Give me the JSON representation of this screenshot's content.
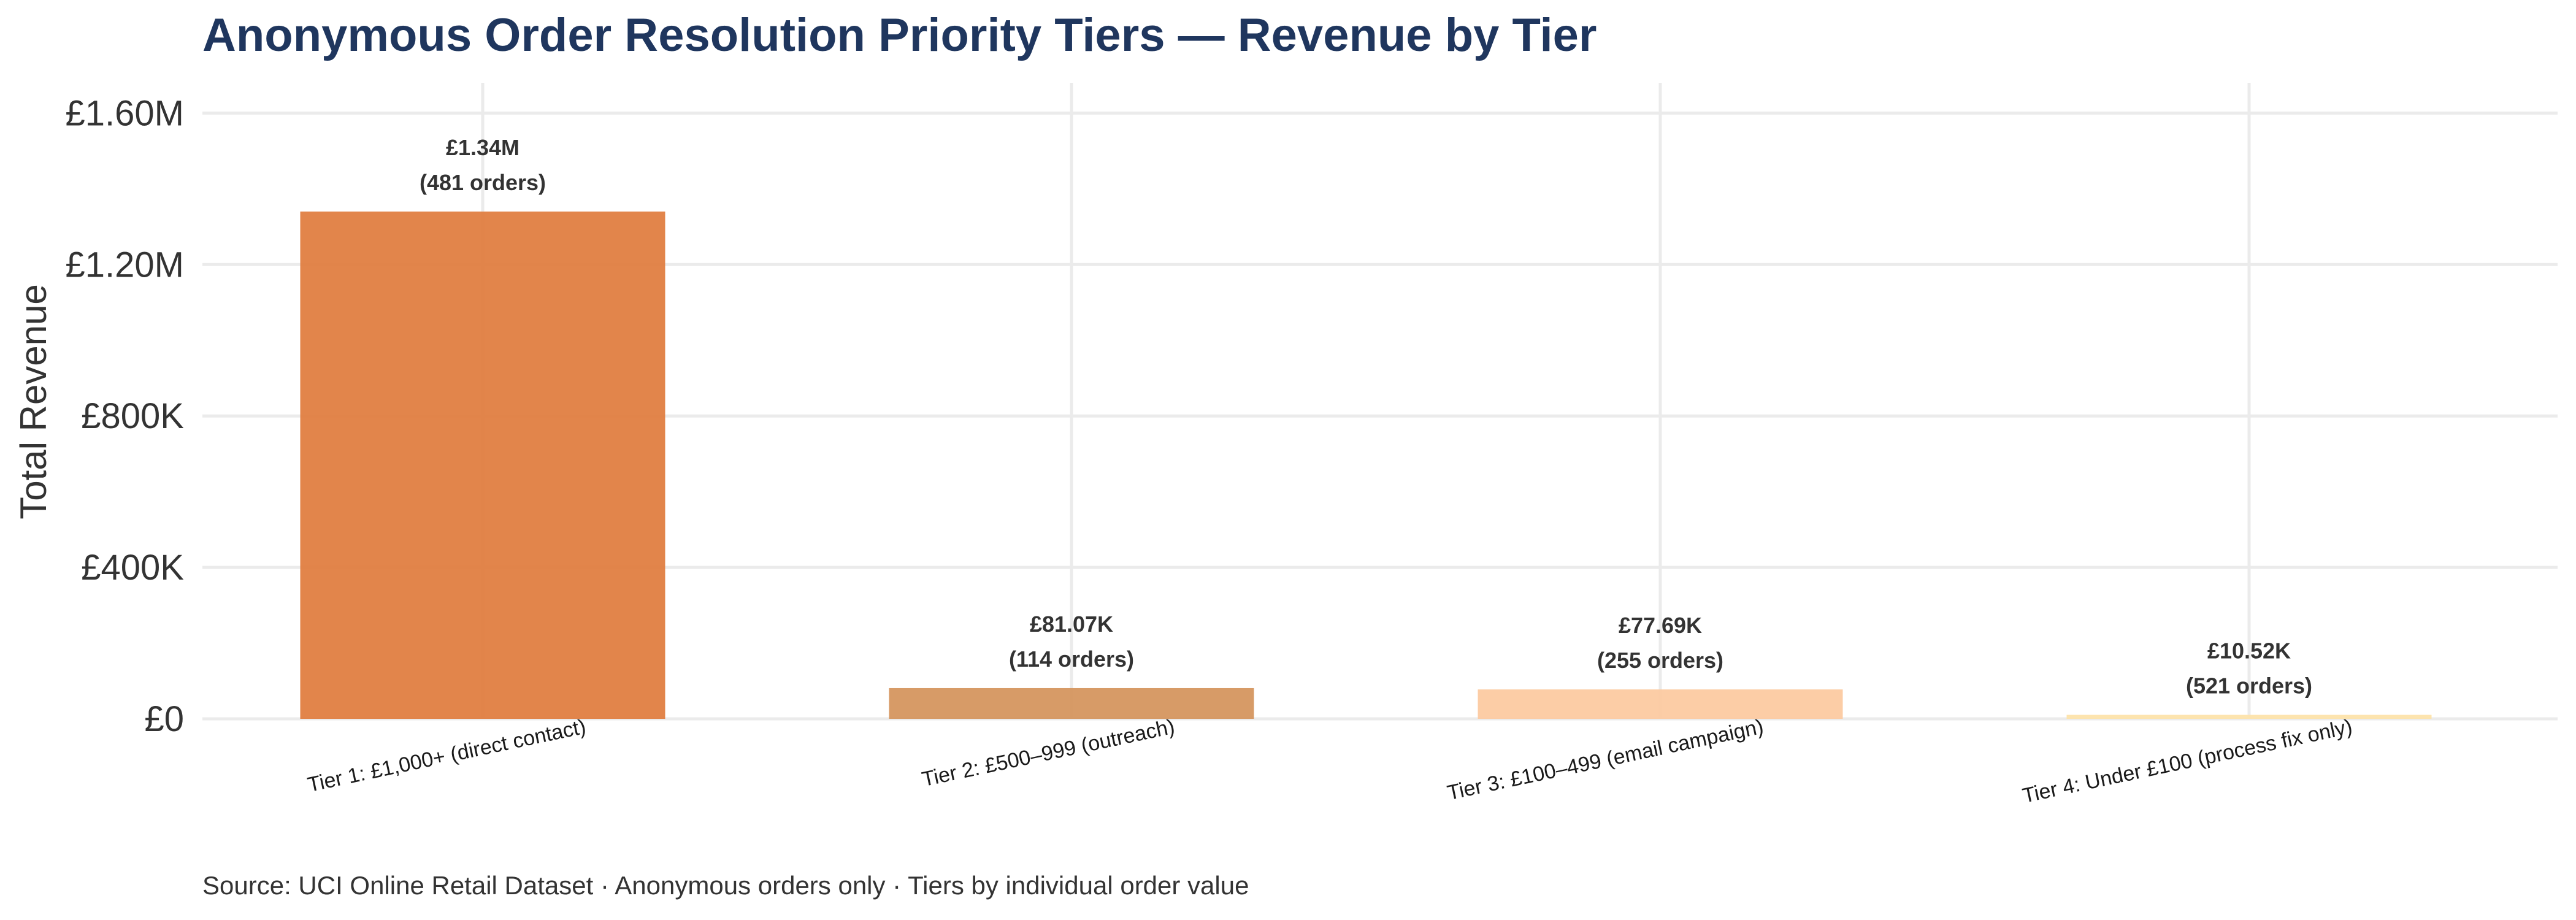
{
  "chart_data": {
    "type": "bar",
    "title": "Anonymous Order Resolution Priority Tiers — Revenue by Tier",
    "caption": "Source: UCI Online Retail Dataset · Anonymous orders only · Tiers by individual order value",
    "xlabel": "",
    "ylabel": "Total Revenue",
    "categories": [
      "Tier 1: £1,000+ (direct contact)",
      "Tier 2: £500–999 (outreach)",
      "Tier 3: £100–499 (email campaign)",
      "Tier 4: Under £100 (process fix only)"
    ],
    "values": [
      1340000,
      81070,
      77690,
      10520
    ],
    "value_labels": [
      "£1.34M",
      "£81.07K",
      "£77.69K",
      "£10.52K"
    ],
    "order_labels": [
      "(481 orders)",
      "(114 orders)",
      "(255 orders)",
      "(521 orders)"
    ],
    "colors": [
      "#e07b3c",
      "#d4935a",
      "#fcc99e",
      "#fde2a8"
    ],
    "ylim": [
      0,
      1680000
    ],
    "yticks": [
      0,
      400000,
      800000,
      1200000,
      1600000
    ],
    "ytick_labels": [
      "£0",
      "£400K",
      "£800K",
      "£1.20M",
      "£1.60M"
    ],
    "grid": true,
    "legend": "none"
  }
}
